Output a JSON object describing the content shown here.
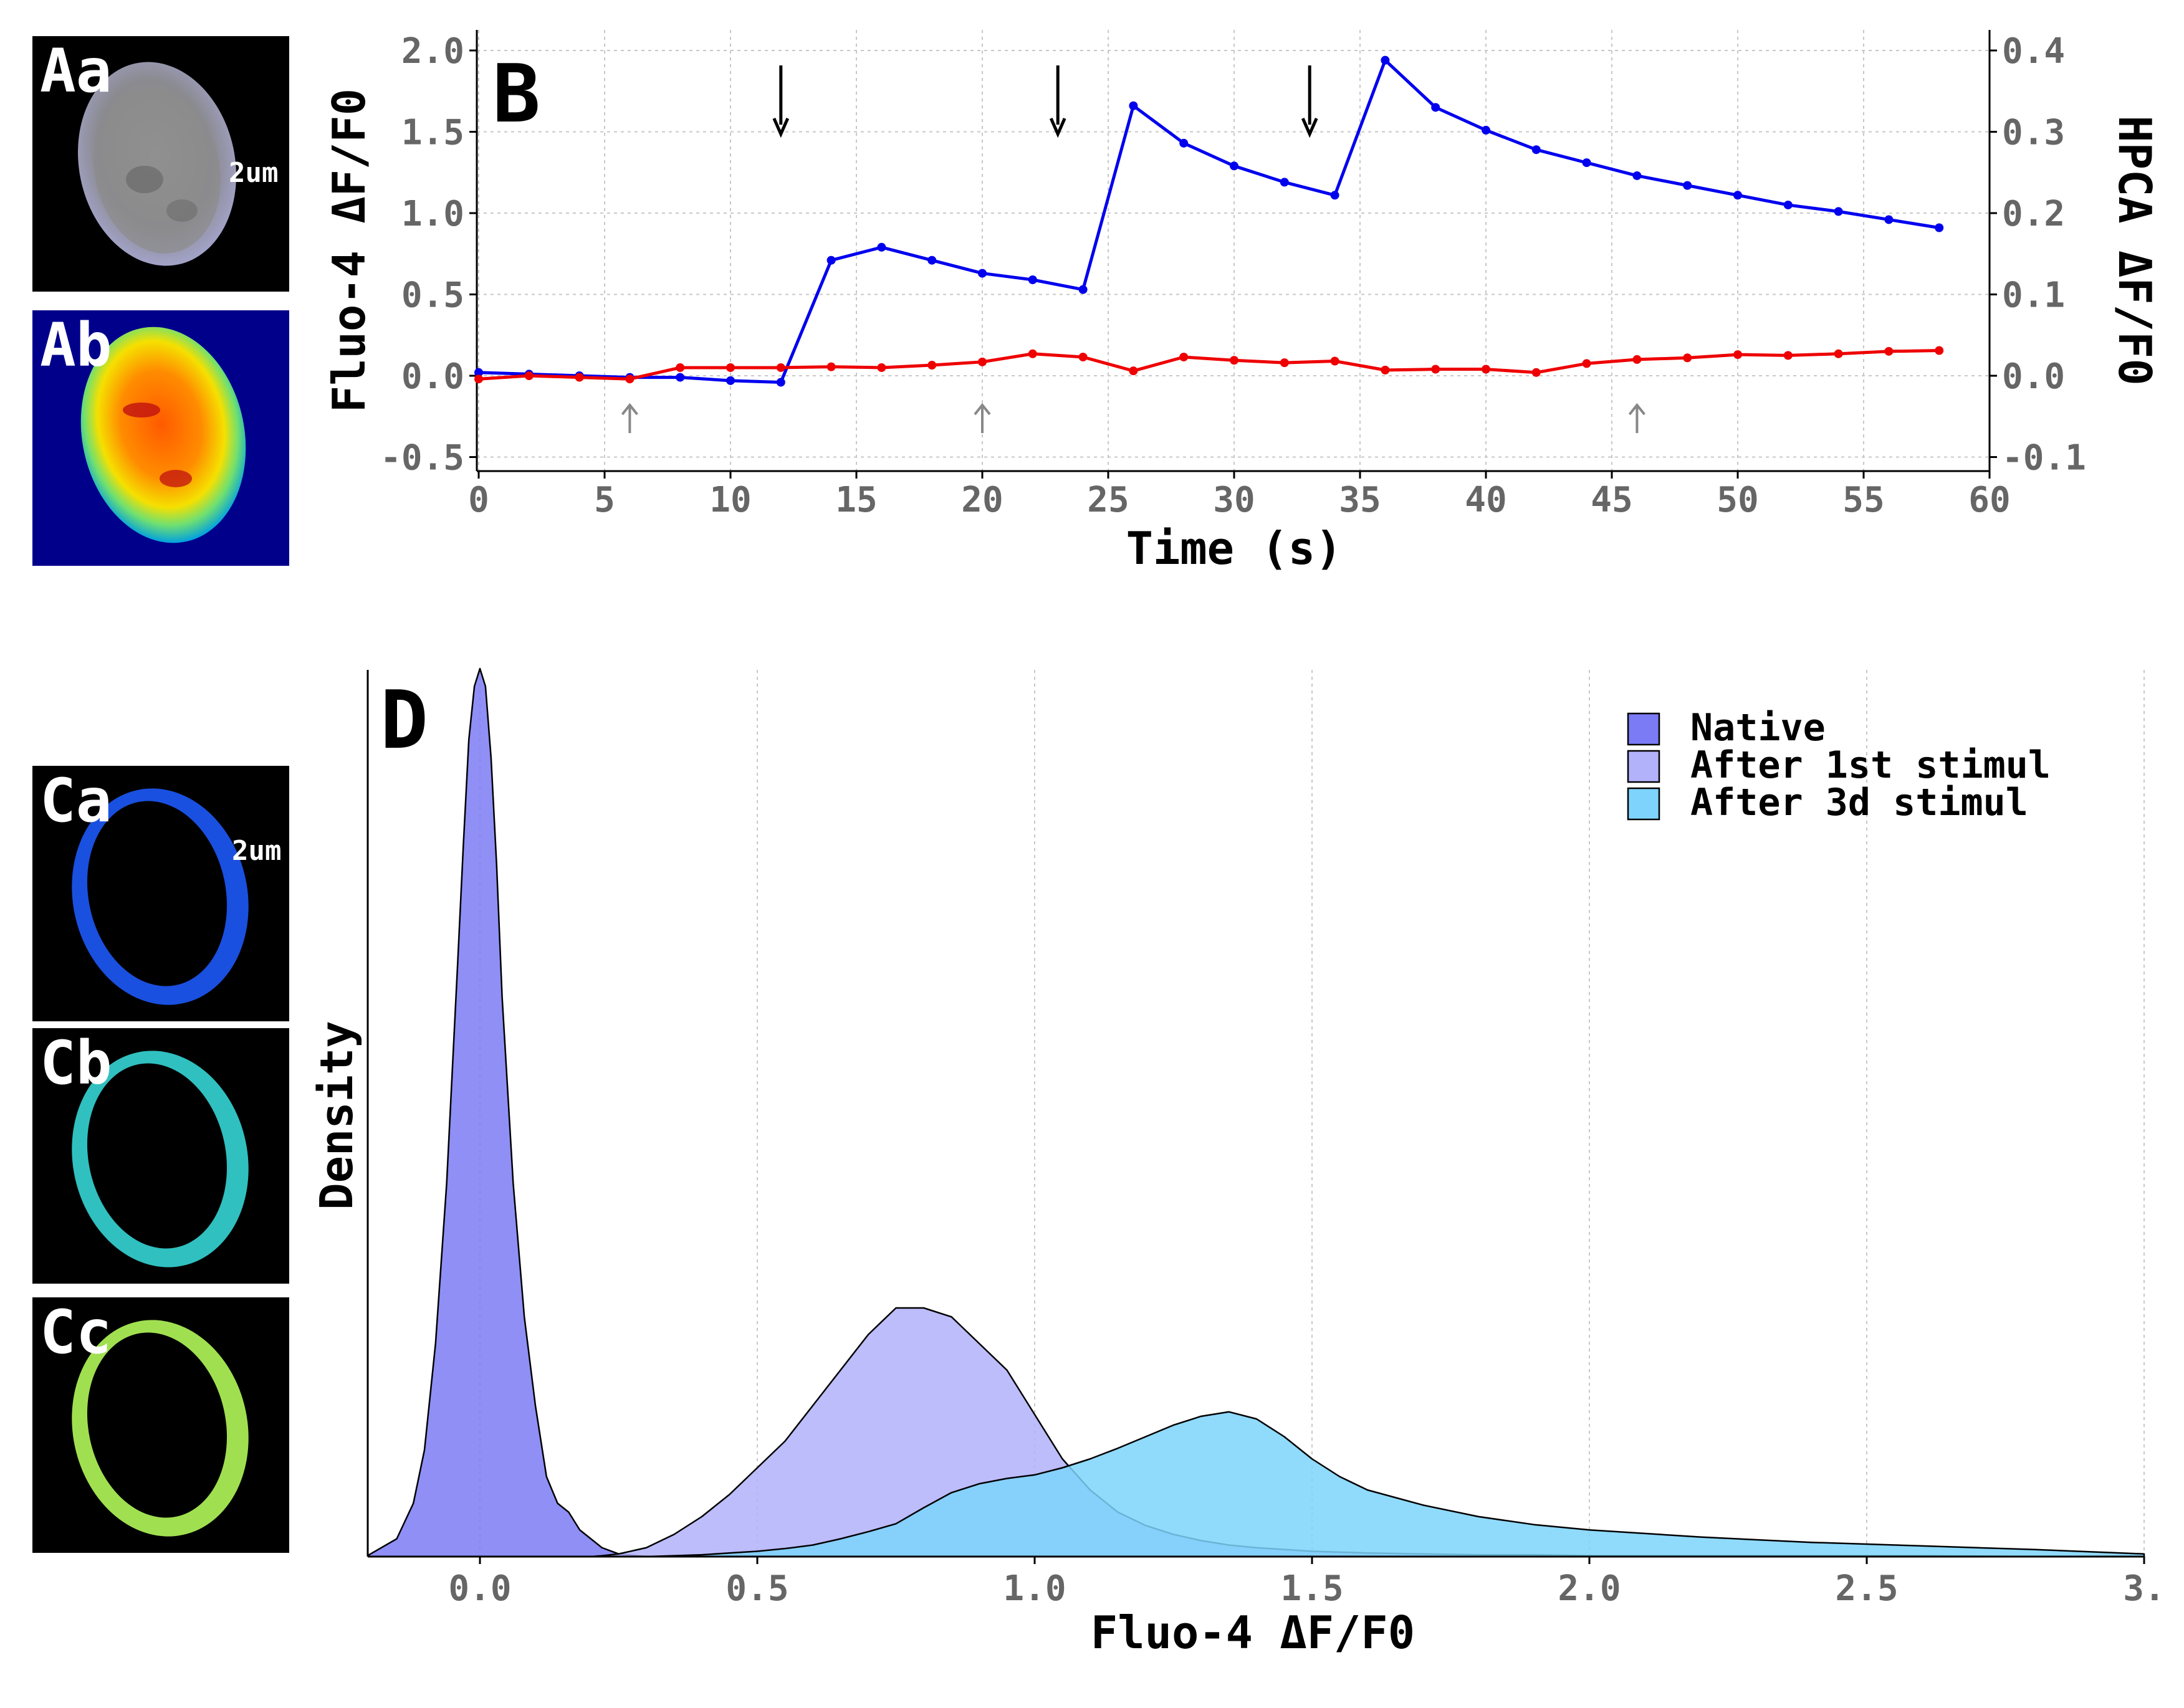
{
  "panels": {
    "Aa": {
      "label": "Aa",
      "scalebar": "2um"
    },
    "Ab": {
      "label": "Ab"
    },
    "Ca": {
      "label": "Ca",
      "scalebar": "2um"
    },
    "Cb": {
      "label": "Cb"
    },
    "Cc": {
      "label": "Cc"
    },
    "B": {
      "label": "B"
    },
    "D": {
      "label": "D"
    }
  },
  "colors": {
    "fluo4": "#0000ee",
    "hpca": "#ee0000",
    "native": "#7b7bf5",
    "after_1st": "#b2b2fb",
    "after_3d": "#7dd3fb",
    "grid": "#c8c8c8"
  },
  "chart_data": [
    {
      "id": "B",
      "type": "line",
      "xlabel": "Time (s)",
      "ylabel_left": "Fluo-4 ΔF/F0",
      "ylabel_right": "HPCA ΔF/F0",
      "xlim": [
        0,
        60
      ],
      "ylim_left": [
        -0.55,
        2.1
      ],
      "ylim_right": [
        -0.11,
        0.42
      ],
      "xticks": [
        "0",
        "5",
        "10",
        "15",
        "20",
        "25",
        "30",
        "35",
        "40",
        "45",
        "50",
        "55",
        "60"
      ],
      "yticks_left": [
        "-0.5",
        "0.0",
        "0.5",
        "1.0",
        "1.5",
        "2.0"
      ],
      "yticks_right": [
        "-0.1",
        "0.0",
        "0.1",
        "0.2",
        "0.3",
        "0.4"
      ],
      "grid": true,
      "series": [
        {
          "axis": "left",
          "x": [
            0,
            2,
            4,
            6,
            8,
            10,
            12,
            14,
            16,
            18,
            20,
            22,
            24,
            26,
            28,
            30,
            32,
            34,
            36,
            38,
            40,
            42,
            44,
            46,
            48,
            50,
            52,
            54,
            56,
            58
          ],
          "values": [
            0.02,
            0.01,
            0.0,
            -0.01,
            -0.01,
            -0.03,
            -0.04,
            0.71,
            0.79,
            0.71,
            0.63,
            0.59,
            0.53,
            1.66,
            1.43,
            1.29,
            1.19,
            1.11,
            1.94,
            1.65,
            1.51,
            1.39,
            1.31,
            1.23,
            1.17,
            1.11,
            1.05,
            1.01,
            0.96,
            0.91
          ]
        },
        {
          "axis": "right",
          "x": [
            0,
            2,
            4,
            6,
            8,
            10,
            12,
            14,
            16,
            18,
            20,
            22,
            24,
            26,
            28,
            30,
            32,
            34,
            36,
            38,
            40,
            42,
            44,
            46,
            48,
            50,
            52,
            54,
            56,
            58
          ],
          "values": [
            -0.004,
            0.0,
            -0.002,
            -0.004,
            0.01,
            0.01,
            0.01,
            0.011,
            0.01,
            0.013,
            0.017,
            0.027,
            0.023,
            0.006,
            0.023,
            0.019,
            0.016,
            0.018,
            0.007,
            0.008,
            0.008,
            0.004,
            0.015,
            0.02,
            0.022,
            0.026,
            0.025,
            0.027,
            0.03,
            0.031
          ]
        }
      ],
      "annotations": {
        "stimulus_arrows_x": [
          12,
          23,
          33
        ],
        "minor_arrows_x": [
          6,
          20,
          46
        ]
      }
    },
    {
      "id": "D",
      "type": "area",
      "xlabel": "Fluo-4 ΔF/F0",
      "ylabel": "Density",
      "xlim": [
        -0.2,
        3.0
      ],
      "xticks": [
        "0.0",
        "0.5",
        "1.0",
        "1.5",
        "2.0",
        "2.5",
        "3."
      ],
      "grid": true,
      "legend_position": "top-right",
      "x": [
        -0.2,
        -0.15,
        -0.12,
        -0.1,
        -0.08,
        -0.06,
        -0.04,
        -0.03,
        -0.02,
        -0.01,
        0.0,
        0.01,
        0.02,
        0.03,
        0.04,
        0.06,
        0.08,
        0.1,
        0.12,
        0.14,
        0.16,
        0.18,
        0.2,
        0.22,
        0.25,
        0.3,
        0.35,
        0.4,
        0.45,
        0.5,
        0.55,
        0.6,
        0.65,
        0.7,
        0.75,
        0.8,
        0.85,
        0.9,
        0.95,
        1.0,
        1.05,
        1.1,
        1.15,
        1.2,
        1.25,
        1.3,
        1.35,
        1.4,
        1.45,
        1.5,
        1.55,
        1.6,
        1.7,
        1.8,
        1.9,
        2.0,
        2.2,
        2.4,
        2.6,
        2.8,
        3.0
      ],
      "series": [
        {
          "name": "Native",
          "values": [
            0.002,
            0.02,
            0.06,
            0.12,
            0.24,
            0.42,
            0.67,
            0.8,
            0.92,
            0.98,
            1.0,
            0.98,
            0.9,
            0.78,
            0.63,
            0.42,
            0.27,
            0.17,
            0.09,
            0.06,
            0.05,
            0.03,
            0.02,
            0.01,
            0.003,
            0,
            0,
            0,
            0,
            0,
            0,
            0,
            0,
            0,
            0,
            0,
            0,
            0,
            0,
            0,
            0,
            0,
            0,
            0,
            0,
            0,
            0,
            0,
            0,
            0,
            0,
            0,
            0,
            0,
            0,
            0,
            0,
            0,
            0,
            0,
            0
          ]
        },
        {
          "name": "After 1st stimul",
          "values": [
            0,
            0,
            0,
            0,
            0,
            0,
            0,
            0,
            0,
            0,
            0,
            0,
            0,
            0,
            0,
            0,
            0,
            0,
            0,
            0,
            0,
            0,
            0,
            0.001,
            0.003,
            0.01,
            0.025,
            0.045,
            0.07,
            0.1,
            0.13,
            0.17,
            0.21,
            0.25,
            0.28,
            0.28,
            0.27,
            0.24,
            0.21,
            0.16,
            0.11,
            0.075,
            0.05,
            0.035,
            0.025,
            0.018,
            0.013,
            0.01,
            0.008,
            0.006,
            0.005,
            0.004,
            0.003,
            0.002,
            0.002,
            0.001,
            0.001,
            0.001,
            0.001,
            0,
            0
          ]
        },
        {
          "name": "After 3d stimul",
          "values": [
            0,
            0,
            0,
            0,
            0,
            0,
            0,
            0,
            0,
            0,
            0,
            0,
            0,
            0,
            0,
            0,
            0,
            0,
            0,
            0,
            0,
            0,
            0,
            0,
            0,
            0,
            0.001,
            0.002,
            0.004,
            0.006,
            0.009,
            0.013,
            0.02,
            0.028,
            0.037,
            0.055,
            0.072,
            0.082,
            0.088,
            0.092,
            0.1,
            0.11,
            0.122,
            0.135,
            0.148,
            0.158,
            0.163,
            0.155,
            0.135,
            0.11,
            0.09,
            0.075,
            0.058,
            0.045,
            0.036,
            0.03,
            0.022,
            0.016,
            0.012,
            0.008,
            0.003
          ]
        }
      ]
    }
  ]
}
